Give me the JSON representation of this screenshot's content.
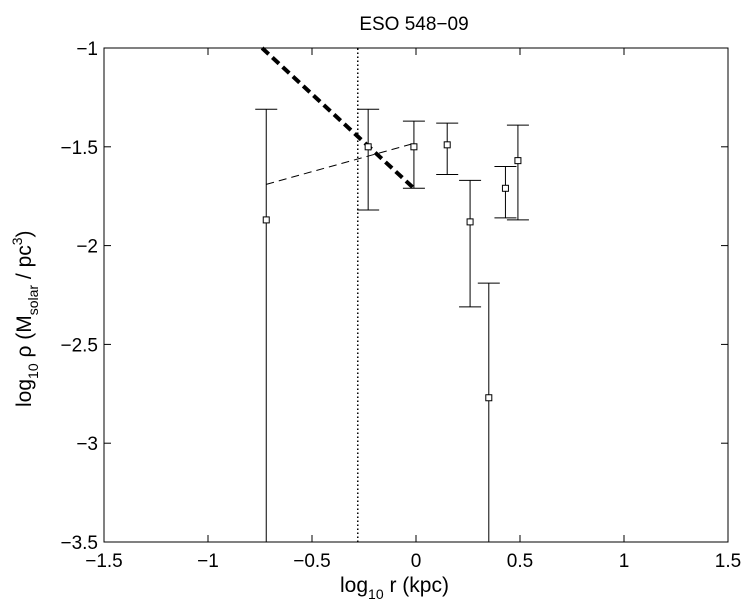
{
  "chart_data": {
    "type": "scatter",
    "title": "ESO 548−09",
    "xlabel": {
      "main": "log",
      "sub": "10",
      "rest": " r (kpc)"
    },
    "ylabel": {
      "main": "log",
      "sub": "10",
      "mid": " ρ (M",
      "sub2": "solar",
      "mid2": " / pc",
      "sup": "3",
      "end": ")"
    },
    "xlim": [
      -1.5,
      1.5
    ],
    "ylim": [
      -3.5,
      -1
    ],
    "xticks": [
      -1.5,
      -1,
      -0.5,
      0,
      0.5,
      1,
      1.5
    ],
    "xtick_labels": [
      "−1.5",
      "−1",
      "−0.5",
      "0",
      "0.5",
      "1",
      "1.5"
    ],
    "yticks": [
      -3.5,
      -3,
      -2.5,
      -2,
      -1.5,
      -1
    ],
    "ytick_labels": [
      "−3.5",
      "−3",
      "−2.5",
      "−2",
      "−1.5",
      "−1"
    ],
    "grid": false,
    "points": [
      {
        "x": -0.72,
        "y": -1.87,
        "err_low": -3.5,
        "err_high": -1.31
      },
      {
        "x": -0.23,
        "y": -1.5,
        "err_low": -1.82,
        "err_high": -1.31
      },
      {
        "x": -0.01,
        "y": -1.5,
        "err_low": -1.71,
        "err_high": -1.37
      },
      {
        "x": 0.15,
        "y": -1.49,
        "err_low": -1.64,
        "err_high": -1.38
      },
      {
        "x": 0.26,
        "y": -1.88,
        "err_low": -2.31,
        "err_high": -1.67
      },
      {
        "x": 0.35,
        "y": -2.77,
        "err_low": -3.5,
        "err_high": -2.19
      },
      {
        "x": 0.43,
        "y": -1.71,
        "err_low": -1.86,
        "err_high": -1.6
      },
      {
        "x": 0.49,
        "y": -1.57,
        "err_low": -1.87,
        "err_high": -1.39
      }
    ],
    "lines": [
      {
        "style": "thick-dashed",
        "x": [
          -0.74,
          0.0
        ],
        "y": [
          -1.0,
          -1.72
        ]
      },
      {
        "style": "thin-dashed",
        "x": [
          -0.72,
          0.0
        ],
        "y": [
          -1.69,
          -1.48
        ]
      },
      {
        "style": "dotted-vertical",
        "x": [
          -0.28,
          -0.28
        ],
        "y": [
          -3.5,
          -1.0
        ]
      }
    ]
  }
}
